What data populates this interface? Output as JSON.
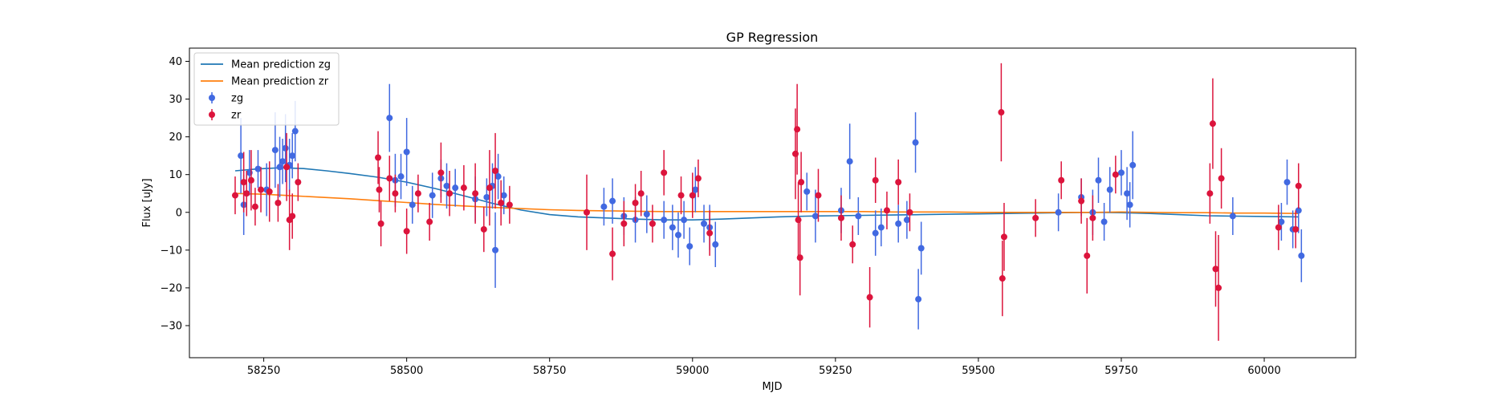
{
  "chart_data": {
    "type": "scatter",
    "title": "GP Regression",
    "xlabel": "MJD",
    "ylabel": "Flux [uJy]",
    "xlim": [
      58120,
      60160
    ],
    "ylim": [
      -38.5,
      43.5
    ],
    "xticks": [
      58250,
      58500,
      58750,
      59000,
      59250,
      59500,
      59750,
      60000
    ],
    "yticks": [
      -30,
      -20,
      -10,
      0,
      10,
      20,
      30,
      40
    ],
    "legend_position": "top-left",
    "grid": false,
    "colors": {
      "zg_points": "#4169e1",
      "zr_points": "#dc143c",
      "mean_zg": "#1f77b4",
      "mean_zr": "#ff7f0e"
    },
    "legend": [
      {
        "label": "Mean prediction zg",
        "kind": "line",
        "color": "#1f77b4"
      },
      {
        "label": "Mean prediction zr",
        "kind": "line",
        "color": "#ff7f0e"
      },
      {
        "label": "zg",
        "kind": "errorbar",
        "color": "#4169e1"
      },
      {
        "label": "zr",
        "kind": "errorbar",
        "color": "#dc143c"
      }
    ],
    "mean_predictions": [
      {
        "name": "Mean prediction zg",
        "color": "#1f77b4",
        "x": [
          58200,
          58240,
          58280,
          58320,
          58360,
          58400,
          58450,
          58500,
          58550,
          58600,
          58650,
          58700,
          58750,
          58800,
          58850,
          58900,
          58950,
          59000,
          59050,
          59100,
          59150,
          59200,
          59250,
          59300,
          59350,
          59400,
          59450,
          59500,
          59550,
          59600,
          59650,
          59700,
          59750,
          59800,
          59850,
          59900,
          59950,
          60000,
          60060
        ],
        "y": [
          11.0,
          11.5,
          11.8,
          11.6,
          11.0,
          10.3,
          9.3,
          8.0,
          6.3,
          4.4,
          2.4,
          0.6,
          -0.6,
          -1.2,
          -1.5,
          -1.8,
          -2.0,
          -2.0,
          -1.8,
          -1.5,
          -1.2,
          -1.0,
          -0.9,
          -0.8,
          -0.7,
          -0.6,
          -0.5,
          -0.4,
          -0.3,
          -0.2,
          -0.1,
          0.0,
          -0.1,
          -0.3,
          -0.6,
          -0.9,
          -1.0,
          -1.1,
          -1.2
        ]
      },
      {
        "name": "Mean prediction zr",
        "color": "#ff7f0e",
        "x": [
          58200,
          58250,
          58300,
          58350,
          58400,
          58450,
          58500,
          58550,
          58600,
          58650,
          58700,
          58750,
          58800,
          58850,
          58900,
          58950,
          59000,
          59050,
          59100,
          59150,
          59200,
          59250,
          59300,
          59350,
          59400,
          59450,
          59500,
          59550,
          59600,
          59650,
          59700,
          59750,
          59800,
          59850,
          59900,
          59950,
          60000,
          60060
        ],
        "y": [
          5.0,
          4.8,
          4.4,
          4.0,
          3.6,
          3.1,
          2.6,
          2.1,
          1.7,
          1.3,
          1.0,
          0.7,
          0.5,
          0.4,
          0.3,
          0.2,
          0.2,
          0.2,
          0.2,
          0.2,
          0.2,
          0.2,
          0.2,
          0.1,
          0.1,
          0.1,
          0.0,
          0.0,
          0.0,
          0.0,
          0.0,
          0.1,
          0.0,
          -0.1,
          -0.1,
          -0.2,
          -0.2,
          -0.3
        ]
      }
    ],
    "series": [
      {
        "name": "zg",
        "color": "#4169e1",
        "x": [
          58210,
          58215,
          58225,
          58240,
          58255,
          58270,
          58278,
          58283,
          58288,
          58295,
          58300,
          58305,
          58470,
          58480,
          58490,
          58500,
          58510,
          58545,
          58560,
          58570,
          58585,
          58620,
          58640,
          58650,
          58655,
          58660,
          58670,
          58845,
          58860,
          58880,
          58900,
          58920,
          58950,
          58965,
          58975,
          58985,
          58995,
          59005,
          59020,
          59030,
          59040,
          59200,
          59215,
          59260,
          59275,
          59290,
          59320,
          59330,
          59360,
          59375,
          59390,
          59395,
          59400,
          59640,
          59680,
          59700,
          59710,
          59720,
          59730,
          59750,
          59760,
          59765,
          59770,
          59945,
          60030,
          60040,
          60050,
          60060,
          60065
        ],
        "y": [
          15,
          2,
          10.5,
          11.5,
          6,
          16.5,
          12,
          13.5,
          17,
          12.5,
          15,
          21.5,
          25,
          8.5,
          9.5,
          16,
          2,
          4.5,
          9,
          7,
          6.5,
          3.5,
          4,
          7,
          -10,
          9.5,
          4.5,
          1.5,
          3,
          -1,
          -2,
          -0.5,
          -2,
          -4,
          -6,
          -2,
          -9,
          6,
          -3,
          -4,
          -8.5,
          5.5,
          -1,
          0.5,
          13.5,
          -1,
          -5.5,
          -4,
          -3,
          -2,
          18.5,
          -23,
          -9.5,
          0,
          4,
          0,
          8.5,
          -2.5,
          6,
          10.5,
          5,
          2,
          12.5,
          -1,
          -2.5,
          8,
          -4.5,
          0.5,
          -11.5
        ],
        "err": [
          10,
          8,
          6,
          5,
          7,
          10,
          8,
          6,
          9,
          7,
          6,
          8,
          9,
          7,
          6,
          9,
          5,
          6,
          5,
          6,
          5,
          6,
          5,
          6,
          10,
          6,
          5,
          5,
          6,
          5,
          6,
          5,
          5,
          6,
          6,
          5,
          5,
          6,
          5,
          6,
          6,
          5,
          7,
          6,
          10,
          5,
          6,
          5,
          5,
          5,
          8,
          8,
          7,
          5,
          5,
          6,
          6,
          5,
          6,
          6,
          7,
          6,
          9,
          5,
          5,
          6,
          5,
          6,
          7
        ]
      },
      {
        "name": "zr",
        "color": "#dc143c",
        "x": [
          58200,
          58215,
          58220,
          58228,
          58235,
          58245,
          58260,
          58275,
          58290,
          58295,
          58300,
          58310,
          58450,
          58452,
          58455,
          58470,
          58480,
          58500,
          58520,
          58540,
          58560,
          58575,
          58600,
          58620,
          58635,
          58645,
          58655,
          58665,
          58680,
          58815,
          58860,
          58880,
          58900,
          58910,
          58930,
          58950,
          58980,
          59000,
          59010,
          59030,
          59180,
          59183,
          59185,
          59188,
          59190,
          59220,
          59260,
          59280,
          59310,
          59320,
          59340,
          59360,
          59380,
          59540,
          59542,
          59545,
          59600,
          59645,
          59680,
          59690,
          59700,
          59740,
          59905,
          59910,
          59915,
          59920,
          59925,
          60025,
          60055,
          60060
        ],
        "y": [
          4.5,
          8,
          5,
          8.5,
          1.5,
          6,
          5.5,
          2.5,
          12,
          -2,
          -1,
          8,
          14.5,
          6,
          -3,
          9,
          5,
          -5,
          5,
          -2.5,
          10.5,
          5,
          6.5,
          5,
          -4.5,
          6.5,
          11,
          2.5,
          2,
          0,
          -11,
          -3,
          2.5,
          5,
          -3,
          10.5,
          4.5,
          4.5,
          9,
          -5.5,
          15.5,
          22,
          -2,
          -12,
          8,
          4.5,
          -1.5,
          -8.5,
          -22.5,
          8.5,
          0.5,
          8,
          0,
          26.5,
          -17.5,
          -6.5,
          -1.5,
          8.5,
          3,
          -11.5,
          -1.5,
          10,
          5,
          23.5,
          -15,
          -20,
          9,
          -4,
          -4.5,
          7
        ],
        "err": [
          5,
          8,
          6,
          8,
          5,
          6,
          8,
          5,
          9,
          8,
          6,
          5,
          7,
          6,
          6,
          6,
          5,
          6,
          5,
          5,
          8,
          6,
          6,
          8,
          6,
          10,
          10,
          6,
          5,
          10,
          7,
          6,
          5,
          6,
          5,
          6,
          5,
          6,
          5,
          6,
          12,
          12,
          10,
          10,
          8,
          7,
          6,
          5,
          8,
          6,
          5,
          6,
          5,
          13,
          10,
          9,
          5,
          5,
          6,
          10,
          6,
          5,
          8,
          12,
          10,
          14,
          8,
          6,
          5,
          6
        ]
      }
    ]
  }
}
